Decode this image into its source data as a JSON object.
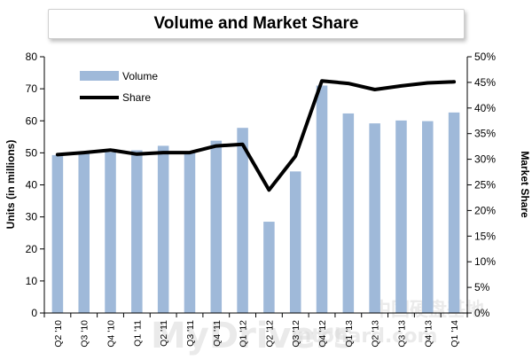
{
  "chart_data": {
    "type": "bar",
    "title": "Volume and Market Share",
    "ylabel": "Units (in millions)",
    "y2label": "Market Share",
    "ylim": [
      0,
      80
    ],
    "y2lim": [
      0,
      50
    ],
    "yticks": [
      "0",
      "10",
      "20",
      "30",
      "40",
      "50",
      "60",
      "70",
      "80"
    ],
    "y2ticks": [
      "0%",
      "5%",
      "10%",
      "15%",
      "20%",
      "25%",
      "30%",
      "35%",
      "40%",
      "45%",
      "50%"
    ],
    "categories": [
      "Q2 '10",
      "Q3 '10",
      "Q4 '10",
      "Q1 '11",
      "Q2 '11",
      "Q3 '11",
      "Q4 '11",
      "Q1 '12",
      "Q2 '12",
      "Q3 '12",
      "Q4 '12",
      "Q1 '13",
      "Q2 '13",
      "Q3 '13",
      "Q4 '13",
      "Q1 '14"
    ],
    "series": [
      {
        "name": "Volume",
        "type": "bar",
        "axis": "left",
        "color": "#9fb9d9",
        "values": [
          49.3,
          50.5,
          50.2,
          50.8,
          52.2,
          50.1,
          53.8,
          57.8,
          28.5,
          44.2,
          71.0,
          62.3,
          59.2,
          60.1,
          59.9,
          62.6
        ]
      },
      {
        "name": "Share",
        "type": "line",
        "axis": "right",
        "color": "#000000",
        "values": [
          30.9,
          31.3,
          31.8,
          31.0,
          31.3,
          31.3,
          32.6,
          32.9,
          24.0,
          30.6,
          45.3,
          44.8,
          43.6,
          44.3,
          44.9,
          45.1
        ]
      }
    ],
    "legend": "top-left",
    "grid": false
  },
  "watermark": {
    "text_latin": "MyDrivers",
    "text_cjk": "中国硬盘基地",
    "text_url": "intohard.com"
  }
}
